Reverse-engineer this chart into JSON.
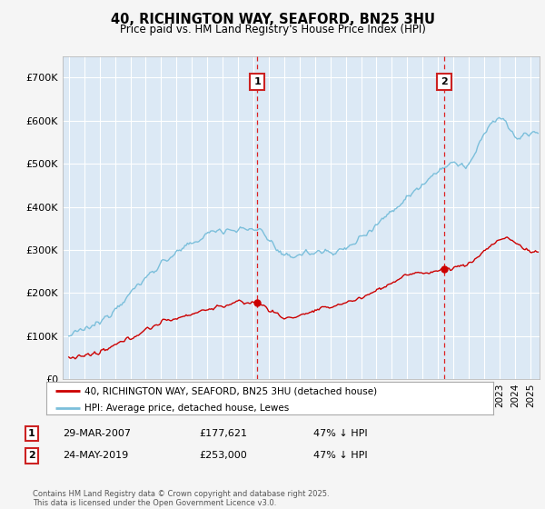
{
  "title1": "40, RICHINGTON WAY, SEAFORD, BN25 3HU",
  "title2": "Price paid vs. HM Land Registry's House Price Index (HPI)",
  "ylim": [
    0,
    750000
  ],
  "yticks": [
    0,
    100000,
    200000,
    300000,
    400000,
    500000,
    600000,
    700000
  ],
  "ytick_labels": [
    "£0",
    "£100K",
    "£200K",
    "£300K",
    "£400K",
    "£500K",
    "£600K",
    "£700K"
  ],
  "hpi_color": "#7bbfdb",
  "price_color": "#cc0000",
  "marker1_x": 2007.24,
  "marker2_x": 2019.39,
  "marker1_label": "29-MAR-2007",
  "marker2_label": "24-MAY-2019",
  "marker1_price": "£177,621",
  "marker2_price": "£253,000",
  "marker1_hpi": "47% ↓ HPI",
  "marker2_hpi": "47% ↓ HPI",
  "legend_price_label": "40, RICHINGTON WAY, SEAFORD, BN25 3HU (detached house)",
  "legend_hpi_label": "HPI: Average price, detached house, Lewes",
  "footer": "Contains HM Land Registry data © Crown copyright and database right 2025.\nThis data is licensed under the Open Government Licence v3.0.",
  "background_color": "#f5f5f5",
  "plot_bg_color": "#dce9f5"
}
